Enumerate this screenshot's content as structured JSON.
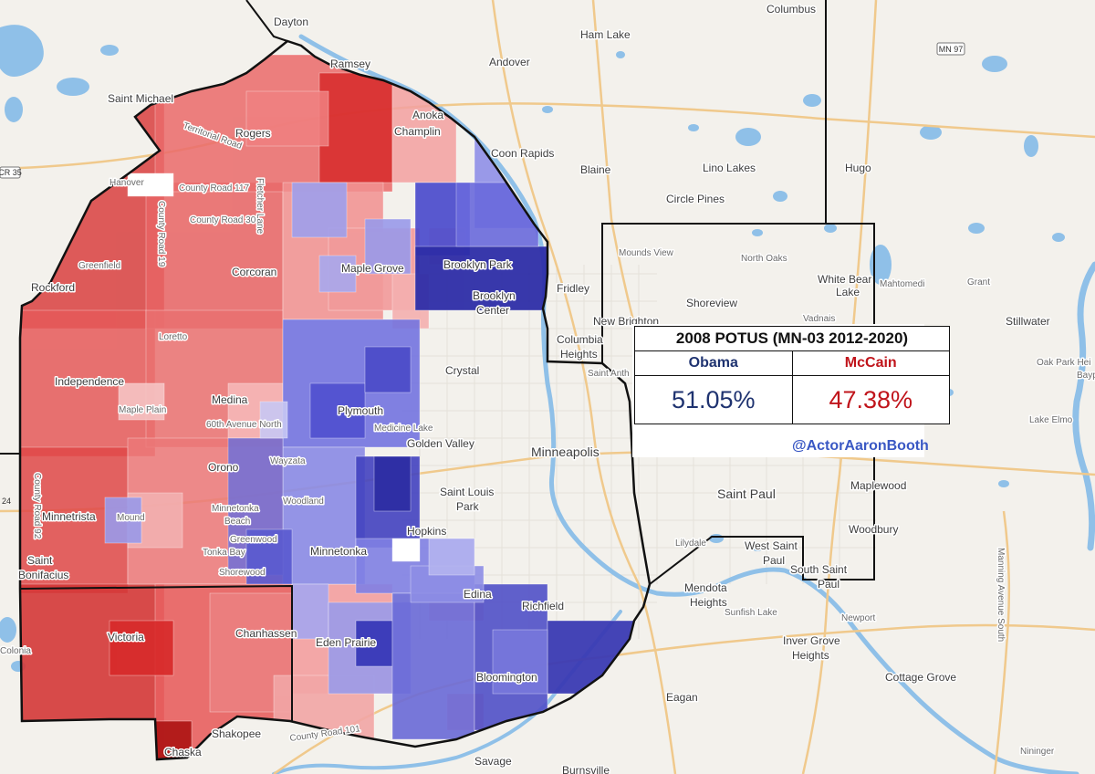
{
  "results": {
    "title": "2008 POTUS (MN-03 2012-2020)",
    "candidates": [
      {
        "name": "Obama",
        "percent": "51.05%",
        "color": "#1f3370"
      },
      {
        "name": "McCain",
        "percent": "47.38%",
        "color": "#c0141b"
      }
    ],
    "credit": "@ActorAaronBooth"
  },
  "map": {
    "colors": {
      "land": "#f3f1ec",
      "water": "#8fc0e8",
      "dem_strong": "#2f2fae",
      "dem_mid": "#6363dd",
      "dem_light": "#a6a6f0",
      "rep_strong": "#d42a2a",
      "rep_mid": "#e85a5a",
      "rep_light": "#f4a0a0"
    },
    "places": {
      "columbus": "Columbus",
      "ham_lake": "Ham Lake",
      "ramsey": "Ramsey",
      "andover": "Andover",
      "anoka": "Anoka",
      "champlin": "Champlin",
      "coon_rapids": "Coon Rapids",
      "blaine": "Blaine",
      "lino_lakes": "Lino Lakes",
      "hugo": "Hugo",
      "circle_pines": "Circle Pines",
      "saint_michael": "Saint Michael",
      "rogers": "Rogers",
      "hanover": "Hanover",
      "greenfield": "Greenfield",
      "rockford": "Rockford",
      "corcoran": "Corcoran",
      "maple_grove": "Maple Grove",
      "brooklyn_park": "Brooklyn Park",
      "brooklyn_center": "Brooklyn Center",
      "fridley": "Fridley",
      "mounds_view": "Mounds View",
      "north_oaks": "North Oaks",
      "white_bear_lake": "White Bear Lake",
      "mahtomedi": "Mahtomedi",
      "grant": "Grant",
      "shoreview": "Shoreview",
      "vadnais": "Vadnais",
      "new_brighton": "New Brighton",
      "columbia_heights": "Columbia Heights",
      "stillwater": "Stillwater",
      "oak_park": "Oak Park Hei",
      "bayport": "Bayp",
      "loretto": "Loretto",
      "independence": "Independence",
      "maple_plain": "Maple Plain",
      "medina": "Medina",
      "crystal": "Crystal",
      "saint_anthony": "Saint Anth",
      "plymouth": "Plymouth",
      "medicine_lake": "Medicine Lake",
      "golden_valley": "Golden Valley",
      "minneapolis": "Minneapolis",
      "wayzata": "Wayzata",
      "orono": "Orono",
      "lake_elmo": "Lake Elmo",
      "maplewood": "Maplewood",
      "saint_paul": "Saint Paul",
      "minnetrista": "Minnetrista",
      "mound": "Mound",
      "minnetonka_beach": "Minnetonka Beach",
      "woodland": "Woodland",
      "saint_louis_park": "Saint Louis Park",
      "hopkins": "Hopkins",
      "minnetonka": "Minnetonka",
      "greenwood": "Greenwood",
      "tonka_bay": "Tonka Bay",
      "shorewood": "Shorewood",
      "saint_bonifacius": "Saint Bonifacius",
      "woodbury": "Woodbury",
      "lilydale": "Lilydale",
      "west_saint_paul": "West Saint Paul",
      "south_saint_paul": "South Saint Paul",
      "mendota_heights": "Mendota Heights",
      "sunfish_lake": "Sunfish Lake",
      "newport": "Newport",
      "edina": "Edina",
      "richfield": "Richfield",
      "victoria": "Victoria",
      "chanhassen": "Chanhassen",
      "eden_prairie": "Eden Prairie",
      "bloomington": "Bloomington",
      "inver_grove_heights": "Inver Grove Heights",
      "cottage_grove": "Cottage Grove",
      "eagan": "Eagan",
      "chaska": "Chaska",
      "shakopee": "Shakopee",
      "savage": "Savage",
      "burnsville": "Burnsville",
      "nininger": "Nininger",
      "dayton": "Dayton",
      "wayzata_short": "Wayzata",
      "cologne": "Colonia"
    },
    "roads": {
      "cr117": "County Road 117",
      "cr30": "County Road 30",
      "cr19": "County Road 19",
      "cr92": "County Road 92",
      "cr101": "County Road 101",
      "fletcher": "Fletcher Lane",
      "territorial": "Territorial Road",
      "sixtieth": "60th Avenue North",
      "manning": "Manning Avenue South"
    },
    "shields": {
      "mn97": "MN 97",
      "cr35": "CR 35",
      "r24": "24"
    }
  }
}
